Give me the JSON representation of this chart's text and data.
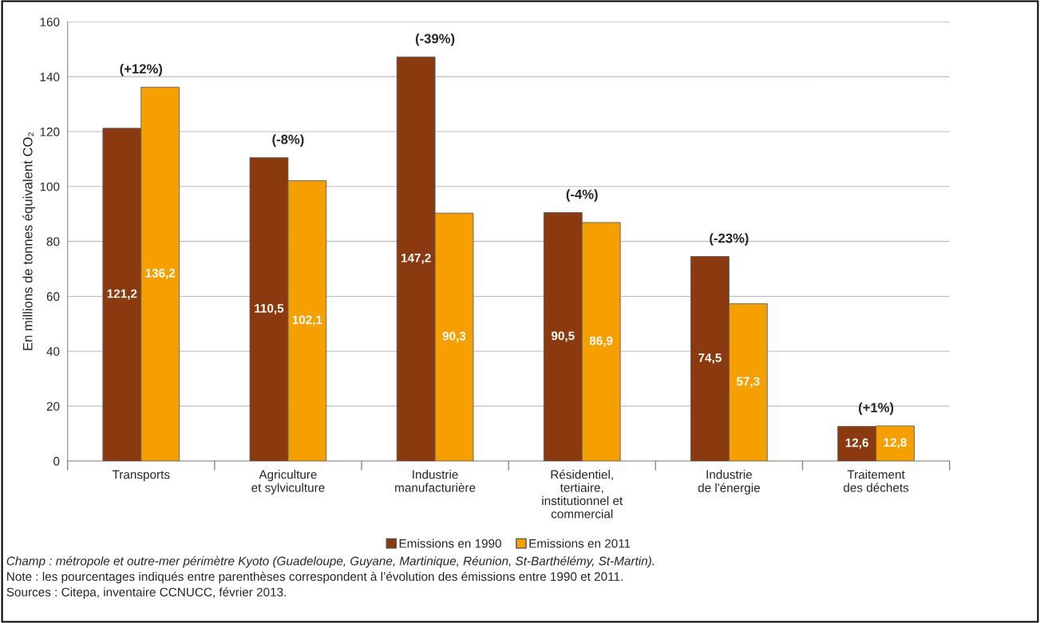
{
  "chart_data": {
    "type": "bar",
    "ylabel": "En millions de tonnes équivalent CO₂",
    "categories": [
      "Transports",
      "Agriculture\net sylviculture",
      "Industrie\nmanufacturière",
      "Résidentiel,\ntertiaire,\ninstitutionnel et\ncommercial",
      "Industrie\nde l'énergie",
      "Traitement\ndes déchets"
    ],
    "series": [
      {
        "name": "Emissions en 1990",
        "color": "#8b3a0f",
        "values": [
          121.2,
          110.5,
          147.2,
          90.5,
          74.5,
          12.6
        ],
        "value_labels": [
          "121,2",
          "110,5",
          "147,2",
          "90,5",
          "74,5",
          "12,6"
        ]
      },
      {
        "name": "Emissions en 2011",
        "color": "#f5a000",
        "values": [
          136.2,
          102.1,
          90.3,
          86.9,
          57.3,
          12.8
        ],
        "value_labels": [
          "136,2",
          "102,1",
          "90,3",
          "86,9",
          "57,3",
          "12,8"
        ]
      }
    ],
    "ylim": [
      0,
      160
    ],
    "yticks": [
      0,
      20,
      40,
      60,
      80,
      100,
      120,
      140,
      160
    ],
    "grid": "y",
    "legend": "bottom",
    "annotations": [
      {
        "text": "(+12%)",
        "x": "Transports",
        "y": 136.2
      },
      {
        "text": "(-8%)",
        "x": "Agriculture\net sylviculture",
        "y": 110.5
      },
      {
        "text": "(-39%)",
        "x": "Industrie\nmanufacturière",
        "y": 147.2
      },
      {
        "text": "(-4%)",
        "x": "Résidentiel,\ntertiaire,\ninstitutionnel et\ncommercial",
        "y": 90.5
      },
      {
        "text": "(-23%)",
        "x": "Industrie\nde l'énergie",
        "y": 74.5
      },
      {
        "text": "(+1%)",
        "x": "Traitement\ndes déchets",
        "y": 12.8
      },
      "Champ : métropole et outre-mer périmètre Kyoto (Guadeloupe, Guyane, Martinique, Réunion, St-Barthélémy, St-Martin).",
      "Note : les pourcentages indiqués entre parenthèses correspondent à l’évolution des émissions entre 1990 et 2011.",
      "Sources : Citepa, inventaire CCNUCC, février 2013."
    ]
  }
}
